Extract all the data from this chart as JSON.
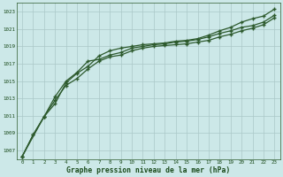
{
  "xlabel": "Graphe pression niveau de la mer (hPa)",
  "bg_color": "#cce8e8",
  "line_color": "#2d5a2d",
  "grid_color": "#aac8c8",
  "text_color": "#1a4a1a",
  "xmin": 0,
  "xmax": 23,
  "ymin": 1006,
  "ymax": 1024,
  "yticks": [
    1007,
    1009,
    1011,
    1013,
    1015,
    1017,
    1019,
    1021,
    1023
  ],
  "xticks": [
    0,
    1,
    2,
    3,
    4,
    5,
    6,
    7,
    8,
    9,
    10,
    11,
    12,
    13,
    14,
    15,
    16,
    17,
    18,
    19,
    20,
    21,
    22,
    23
  ],
  "series1_x": [
    0,
    1,
    2,
    3,
    4,
    5,
    6,
    7,
    8,
    9,
    10,
    11,
    12,
    13,
    14,
    15,
    16,
    17,
    18,
    19,
    20,
    21,
    22,
    23
  ],
  "series1": [
    1006.3,
    1008.8,
    1010.9,
    1012.8,
    1014.5,
    1015.3,
    1016.4,
    1017.3,
    1017.8,
    1018.0,
    1018.5,
    1018.8,
    1019.0,
    1019.1,
    1019.2,
    1019.3,
    1019.5,
    1019.7,
    1020.1,
    1020.4,
    1020.8,
    1021.1,
    1021.5,
    1022.3
  ],
  "series2_x": [
    0,
    1,
    2,
    3,
    4,
    5,
    6,
    7,
    8,
    9,
    10,
    11,
    12,
    13,
    14,
    15,
    16,
    17,
    18,
    19,
    20,
    21,
    22,
    23
  ],
  "series2": [
    1006.3,
    1008.8,
    1010.9,
    1013.2,
    1015.0,
    1016.0,
    1017.3,
    1017.5,
    1018.0,
    1018.3,
    1018.8,
    1019.0,
    1019.2,
    1019.3,
    1019.5,
    1019.6,
    1019.8,
    1020.1,
    1020.5,
    1020.8,
    1021.2,
    1021.4,
    1021.8,
    1022.6
  ],
  "series3_x": [
    0,
    2,
    3,
    4,
    5,
    6,
    7,
    8,
    9,
    10,
    11,
    12,
    13,
    14,
    15,
    16,
    17,
    18,
    19,
    20,
    21,
    22,
    23
  ],
  "series3": [
    1006.3,
    1010.9,
    1012.4,
    1014.8,
    1015.9,
    1016.7,
    1017.9,
    1018.5,
    1018.8,
    1019.0,
    1019.2,
    1019.3,
    1019.4,
    1019.6,
    1019.7,
    1019.9,
    1020.3,
    1020.8,
    1021.2,
    1021.8,
    1022.2,
    1022.5,
    1023.3
  ]
}
